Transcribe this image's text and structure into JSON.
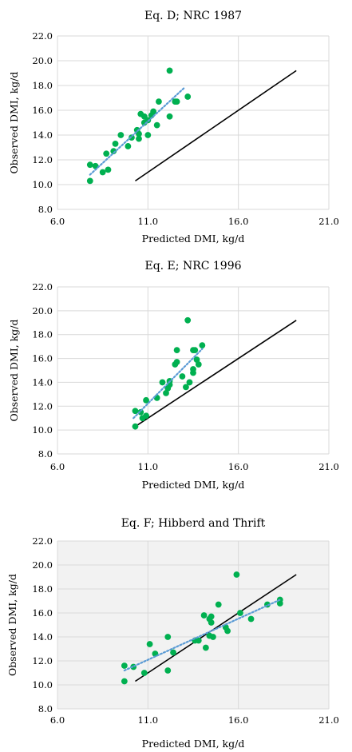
{
  "chart_data": [
    {
      "type": "scatter",
      "title": "Eq. D; NRC 1987",
      "xlabel": "Predicted DMI, kg/d",
      "ylabel": "Observed DMI, kg/d",
      "xlim": [
        6.0,
        21.0
      ],
      "ylim": [
        8.0,
        22.0
      ],
      "xticks": [
        "6.0",
        "11.0",
        "16.0",
        "21.0"
      ],
      "yticks": [
        "8.0",
        "10.0",
        "12.0",
        "14.0",
        "16.0",
        "18.0",
        "20.0",
        "22.0"
      ],
      "grid": true,
      "colors": {
        "points": "#00b050",
        "identity": "#000000",
        "trend": "#5b9bd5"
      },
      "identity_line": {
        "x": [
          10.3,
          19.2
        ],
        "y": [
          10.3,
          19.2
        ]
      },
      "trend_line": {
        "x": [
          7.8,
          13.0
        ],
        "y": [
          10.8,
          17.8
        ]
      },
      "points": [
        {
          "x": 7.8,
          "y": 10.3
        },
        {
          "x": 7.8,
          "y": 11.6
        },
        {
          "x": 8.1,
          "y": 11.5
        },
        {
          "x": 8.5,
          "y": 11.0
        },
        {
          "x": 8.8,
          "y": 11.2
        },
        {
          "x": 8.7,
          "y": 12.5
        },
        {
          "x": 9.1,
          "y": 12.7
        },
        {
          "x": 9.2,
          "y": 13.3
        },
        {
          "x": 9.5,
          "y": 14.0
        },
        {
          "x": 9.9,
          "y": 13.1
        },
        {
          "x": 10.1,
          "y": 13.8
        },
        {
          "x": 10.4,
          "y": 14.4
        },
        {
          "x": 10.5,
          "y": 14.1
        },
        {
          "x": 10.5,
          "y": 13.7
        },
        {
          "x": 10.6,
          "y": 15.7
        },
        {
          "x": 10.8,
          "y": 15.5
        },
        {
          "x": 10.8,
          "y": 15.0
        },
        {
          "x": 11.0,
          "y": 14.0
        },
        {
          "x": 11.0,
          "y": 15.2
        },
        {
          "x": 11.2,
          "y": 15.6
        },
        {
          "x": 11.3,
          "y": 15.9
        },
        {
          "x": 11.5,
          "y": 14.8
        },
        {
          "x": 11.6,
          "y": 16.7
        },
        {
          "x": 12.2,
          "y": 15.5
        },
        {
          "x": 12.2,
          "y": 19.2
        },
        {
          "x": 12.5,
          "y": 16.7
        },
        {
          "x": 12.6,
          "y": 16.7
        },
        {
          "x": 13.2,
          "y": 17.1
        }
      ]
    },
    {
      "type": "scatter",
      "title": "Eq. E; NRC 1996",
      "xlabel": "Predicted DMI, kg/d",
      "ylabel": "Observed DMI, kg/d",
      "xlim": [
        6.0,
        21.0
      ],
      "ylim": [
        8.0,
        22.0
      ],
      "xticks": [
        "6.0",
        "11.0",
        "16.0",
        "21.0"
      ],
      "yticks": [
        "8.0",
        "10.0",
        "12.0",
        "14.0",
        "16.0",
        "18.0",
        "20.0",
        "22.0"
      ],
      "grid": true,
      "colors": {
        "points": "#00b050",
        "identity": "#000000",
        "trend": "#5b9bd5"
      },
      "identity_line": {
        "x": [
          10.3,
          19.2
        ],
        "y": [
          10.3,
          19.2
        ]
      },
      "trend_line": {
        "x": [
          10.2,
          14.0
        ],
        "y": [
          11.0,
          16.8
        ]
      },
      "points": [
        {
          "x": 10.3,
          "y": 10.3
        },
        {
          "x": 10.3,
          "y": 11.6
        },
        {
          "x": 10.6,
          "y": 11.5
        },
        {
          "x": 10.7,
          "y": 11.0
        },
        {
          "x": 10.9,
          "y": 11.2
        },
        {
          "x": 10.9,
          "y": 12.5
        },
        {
          "x": 11.5,
          "y": 12.7
        },
        {
          "x": 11.8,
          "y": 14.0
        },
        {
          "x": 12.0,
          "y": 13.1
        },
        {
          "x": 12.1,
          "y": 13.5
        },
        {
          "x": 12.2,
          "y": 14.1
        },
        {
          "x": 12.2,
          "y": 13.8
        },
        {
          "x": 12.5,
          "y": 15.5
        },
        {
          "x": 12.6,
          "y": 15.7
        },
        {
          "x": 12.6,
          "y": 16.7
        },
        {
          "x": 12.9,
          "y": 14.5
        },
        {
          "x": 13.1,
          "y": 13.6
        },
        {
          "x": 13.2,
          "y": 19.2
        },
        {
          "x": 13.3,
          "y": 14.0
        },
        {
          "x": 13.5,
          "y": 14.8
        },
        {
          "x": 13.5,
          "y": 15.1
        },
        {
          "x": 13.5,
          "y": 16.7
        },
        {
          "x": 13.6,
          "y": 16.7
        },
        {
          "x": 13.7,
          "y": 15.9
        },
        {
          "x": 13.8,
          "y": 15.5
        },
        {
          "x": 14.0,
          "y": 17.1
        }
      ]
    },
    {
      "type": "scatter",
      "title": "Eq. F; Hibberd and Thrift",
      "xlabel": "Predicted DMI, kg/d",
      "ylabel": "Observed DMI, kg/d",
      "xlim": [
        6.0,
        21.0
      ],
      "ylim": [
        8.0,
        22.0
      ],
      "xticks": [
        "6.0",
        "11.0",
        "16.0",
        "21.0"
      ],
      "yticks": [
        "8.0",
        "10.0",
        "12.0",
        "14.0",
        "16.0",
        "18.0",
        "20.0",
        "22.0"
      ],
      "grid": true,
      "plot_bg": "#f2f2f2",
      "colors": {
        "points": "#00b050",
        "identity": "#000000",
        "trend": "#5b9bd5"
      },
      "identity_line": {
        "x": [
          10.3,
          19.2
        ],
        "y": [
          10.3,
          19.2
        ]
      },
      "trend_line": {
        "x": [
          9.7,
          18.3
        ],
        "y": [
          11.2,
          17.1
        ]
      },
      "points": [
        {
          "x": 9.7,
          "y": 10.3
        },
        {
          "x": 9.7,
          "y": 11.6
        },
        {
          "x": 10.2,
          "y": 11.5
        },
        {
          "x": 10.8,
          "y": 11.0
        },
        {
          "x": 11.1,
          "y": 13.4
        },
        {
          "x": 11.4,
          "y": 12.6
        },
        {
          "x": 12.1,
          "y": 11.2
        },
        {
          "x": 12.1,
          "y": 14.0
        },
        {
          "x": 12.4,
          "y": 12.7
        },
        {
          "x": 13.6,
          "y": 13.7
        },
        {
          "x": 13.8,
          "y": 13.7
        },
        {
          "x": 14.1,
          "y": 15.8
        },
        {
          "x": 14.2,
          "y": 13.1
        },
        {
          "x": 14.4,
          "y": 14.1
        },
        {
          "x": 14.4,
          "y": 15.5
        },
        {
          "x": 14.5,
          "y": 15.7
        },
        {
          "x": 14.6,
          "y": 14.0
        },
        {
          "x": 14.5,
          "y": 15.2
        },
        {
          "x": 14.9,
          "y": 16.7
        },
        {
          "x": 15.3,
          "y": 14.8
        },
        {
          "x": 15.4,
          "y": 14.5
        },
        {
          "x": 15.9,
          "y": 19.2
        },
        {
          "x": 16.1,
          "y": 16.0
        },
        {
          "x": 16.7,
          "y": 15.5
        },
        {
          "x": 17.6,
          "y": 16.7
        },
        {
          "x": 18.3,
          "y": 16.8
        },
        {
          "x": 18.3,
          "y": 17.1
        }
      ]
    }
  ]
}
